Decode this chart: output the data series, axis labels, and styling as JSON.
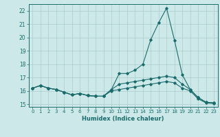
{
  "title": "",
  "xlabel": "Humidex (Indice chaleur)",
  "bg_color": "#cce8e8",
  "grid_color": "#aacccc",
  "line_color": "#1a6b6b",
  "xlim": [
    -0.5,
    23.5
  ],
  "ylim": [
    14.8,
    22.5
  ],
  "yticks": [
    15,
    16,
    17,
    18,
    19,
    20,
    21,
    22
  ],
  "xticks": [
    0,
    1,
    2,
    3,
    4,
    5,
    6,
    7,
    8,
    9,
    10,
    11,
    12,
    13,
    14,
    15,
    16,
    17,
    18,
    19,
    20,
    21,
    22,
    23
  ],
  "series": [
    {
      "x": [
        0,
        1,
        2,
        3,
        4,
        5,
        6,
        7,
        8,
        9,
        10,
        11,
        12,
        13,
        14,
        15,
        16,
        17,
        18,
        19,
        20,
        21,
        22,
        23
      ],
      "y": [
        16.2,
        16.4,
        16.2,
        16.1,
        15.9,
        15.7,
        15.8,
        15.65,
        15.6,
        15.6,
        16.1,
        17.3,
        17.3,
        17.55,
        18.0,
        19.85,
        21.1,
        22.2,
        19.8,
        17.2,
        16.1,
        15.5,
        15.15,
        15.1
      ]
    },
    {
      "x": [
        0,
        1,
        2,
        3,
        4,
        5,
        6,
        7,
        8,
        9,
        10,
        11,
        12,
        13,
        14,
        15,
        16,
        17,
        18,
        19,
        20,
        21,
        22,
        23
      ],
      "y": [
        16.2,
        16.4,
        16.2,
        16.1,
        15.9,
        15.7,
        15.8,
        15.65,
        15.6,
        15.6,
        16.1,
        16.5,
        16.6,
        16.7,
        16.8,
        16.9,
        17.0,
        17.1,
        17.0,
        16.5,
        16.1,
        15.5,
        15.15,
        15.1
      ]
    },
    {
      "x": [
        0,
        1,
        2,
        3,
        4,
        5,
        6,
        7,
        8,
        9,
        10,
        11,
        12,
        13,
        14,
        15,
        16,
        17,
        18,
        19,
        20,
        21,
        22,
        23
      ],
      "y": [
        16.2,
        16.4,
        16.2,
        16.1,
        15.9,
        15.7,
        15.8,
        15.65,
        15.6,
        15.6,
        16.0,
        16.1,
        16.2,
        16.3,
        16.4,
        16.5,
        16.6,
        16.7,
        16.6,
        16.2,
        16.0,
        15.4,
        15.1,
        15.05
      ]
    }
  ]
}
